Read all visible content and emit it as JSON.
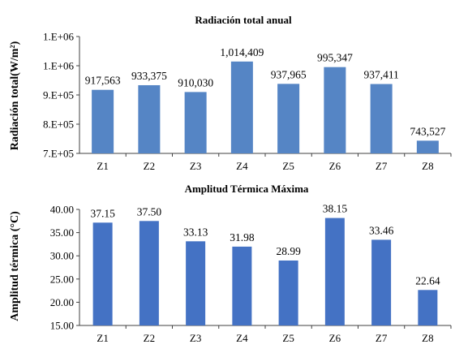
{
  "chart_data": [
    {
      "type": "bar",
      "title": "Radiación total anual",
      "xlabel": "",
      "ylabel": "Radiación total(W/m²)",
      "categories": [
        "Z1",
        "Z2",
        "Z3",
        "Z4",
        "Z5",
        "Z6",
        "Z7",
        "Z8"
      ],
      "values": [
        917563,
        933375,
        910030,
        1014409,
        937965,
        995347,
        937411,
        743527
      ],
      "data_labels": [
        "917,563",
        "933,375",
        "910,030",
        "1,014,409",
        "937,965",
        "995,347",
        "937,411",
        "743,527"
      ],
      "ylim": [
        700000,
        1100000
      ],
      "yticks": [
        700000,
        800000,
        900000,
        1000000,
        1100000
      ],
      "ytick_labels": [
        "7.E+05",
        "8.E+05",
        "9.E+05",
        "1.E+06",
        "1.E+06"
      ],
      "bar_color": "#5585C5",
      "grid": false
    },
    {
      "type": "bar",
      "title": "Amplitud Térmica Máxima",
      "xlabel": "",
      "ylabel": "Amplitud térmica (°C)",
      "categories": [
        "Z1",
        "Z2",
        "Z3",
        "Z4",
        "Z5",
        "Z6",
        "Z7",
        "Z8"
      ],
      "values": [
        37.15,
        37.5,
        33.13,
        31.98,
        28.99,
        38.15,
        33.46,
        22.64
      ],
      "data_labels": [
        "37.15",
        "37.50",
        "33.13",
        "31.98",
        "28.99",
        "38.15",
        "33.46",
        "22.64"
      ],
      "ylim": [
        15,
        40
      ],
      "yticks": [
        15,
        20,
        25,
        30,
        35,
        40
      ],
      "ytick_labels": [
        "15.00",
        "20.00",
        "25.00",
        "30.00",
        "35.00",
        "40.00"
      ],
      "bar_color": "#4472C4",
      "grid": false
    }
  ]
}
